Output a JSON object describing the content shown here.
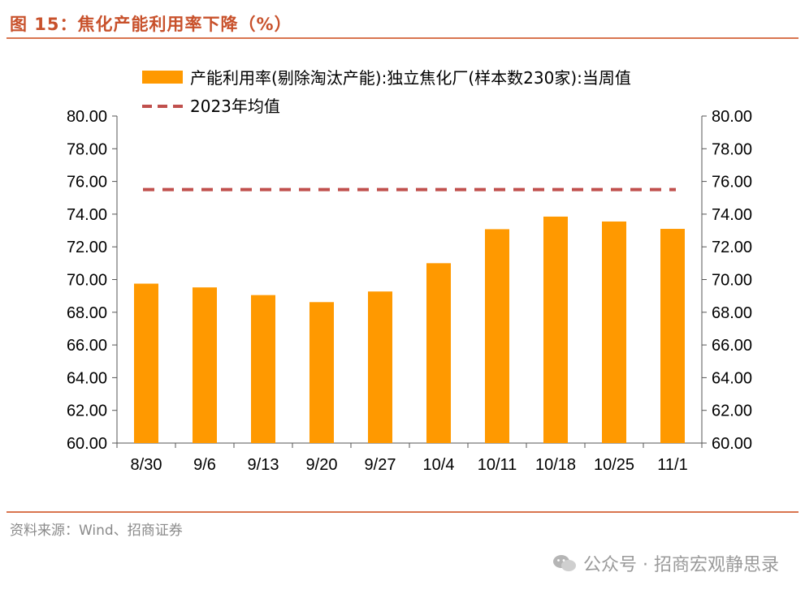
{
  "figure_title": "图 15：焦化产能利用率下降（%）",
  "source": "资料来源：Wind、招商证券",
  "watermark": "公众号 · 招商宏观静思录",
  "colors": {
    "bar": "#ff9900",
    "avg_line": "#c0504d",
    "axis": "#555555",
    "title": "#c8512b"
  },
  "chart_data": {
    "type": "bar",
    "categories": [
      "8/30",
      "9/6",
      "9/13",
      "9/20",
      "9/27",
      "10/4",
      "10/11",
      "10/18",
      "10/25",
      "11/1"
    ],
    "series": [
      {
        "name": "产能利用率(剔除淘汰产能):独立焦化厂(样本数230家):当周值",
        "type": "bar",
        "values": [
          69.75,
          69.52,
          69.05,
          68.62,
          69.27,
          71.0,
          73.08,
          73.85,
          73.55,
          73.1
        ]
      },
      {
        "name": "2023年均值",
        "type": "line",
        "style": "dashed",
        "value": 75.5
      }
    ],
    "ylim": [
      60,
      80
    ],
    "yticks": [
      "60.00",
      "62.00",
      "64.00",
      "66.00",
      "68.00",
      "70.00",
      "72.00",
      "74.00",
      "76.00",
      "78.00",
      "80.00"
    ],
    "y_axis_right": true,
    "grid": false,
    "legend_position": "top"
  }
}
